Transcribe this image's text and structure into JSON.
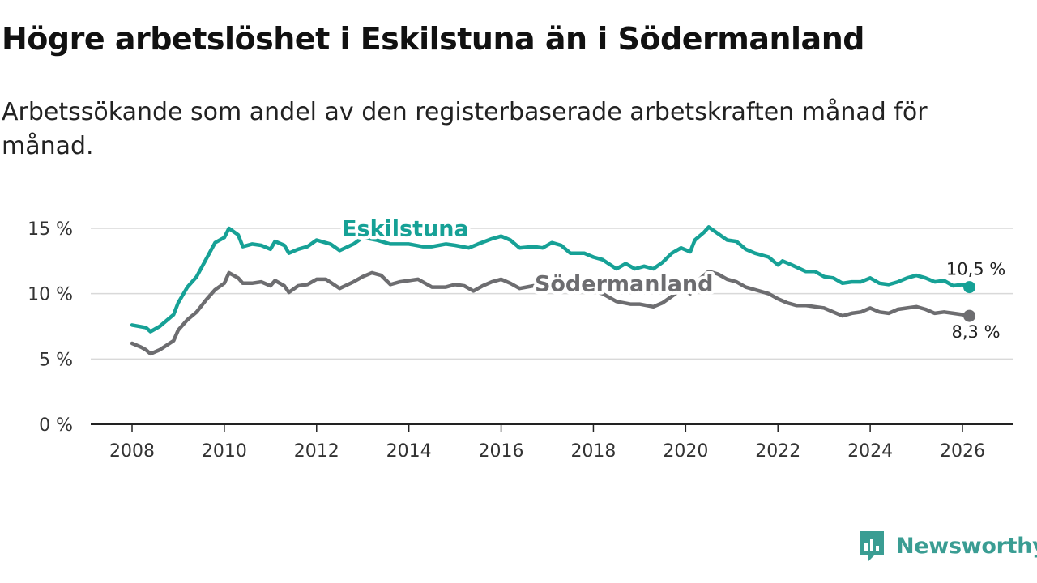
{
  "title": "Högre arbetslöshet i Eskilstuna än i Södermanland",
  "subtitle": "Arbetssökande som andel av den registerbaserade arbetskraften månad för månad.",
  "brand": {
    "name": "Newsworthy",
    "icon": "newsworthy-logo-icon",
    "color": "#3a9d93"
  },
  "colors": {
    "eskilstuna": "#16a196",
    "sodermanland": "#6d6d70",
    "grid": "#d9d9d9",
    "axis": "#222222"
  },
  "chart_data": {
    "type": "line",
    "title": "Högre arbetslöshet i Eskilstuna än i Södermanland",
    "xlabel": "",
    "ylabel": "",
    "xlim": [
      2007.9,
      2027.1
    ],
    "ylim": [
      0,
      15.6
    ],
    "x_ticks": [
      2008,
      2010,
      2012,
      2014,
      2016,
      2018,
      2020,
      2022,
      2024,
      2026
    ],
    "x_tick_labels": [
      "2008",
      "2010",
      "2012",
      "2014",
      "2016",
      "2018",
      "2020",
      "2022",
      "2024",
      "2026"
    ],
    "y_ticks": [
      0,
      5,
      10,
      15
    ],
    "y_tick_labels": [
      "0 %",
      "5 %",
      "10 %",
      "15 %"
    ],
    "grid": true,
    "series": [
      {
        "name": "Eskilstuna",
        "color": "#16a196",
        "end_label": "10,5 %",
        "points": [
          [
            2008.0,
            7.6
          ],
          [
            2008.3,
            7.4
          ],
          [
            2008.4,
            7.1
          ],
          [
            2008.6,
            7.5
          ],
          [
            2008.9,
            8.4
          ],
          [
            2009.0,
            9.3
          ],
          [
            2009.2,
            10.5
          ],
          [
            2009.4,
            11.3
          ],
          [
            2009.6,
            12.6
          ],
          [
            2009.8,
            13.9
          ],
          [
            2010.0,
            14.3
          ],
          [
            2010.1,
            15.0
          ],
          [
            2010.3,
            14.5
          ],
          [
            2010.4,
            13.6
          ],
          [
            2010.6,
            13.8
          ],
          [
            2010.8,
            13.7
          ],
          [
            2011.0,
            13.4
          ],
          [
            2011.1,
            14.0
          ],
          [
            2011.3,
            13.7
          ],
          [
            2011.4,
            13.1
          ],
          [
            2011.6,
            13.4
          ],
          [
            2011.8,
            13.6
          ],
          [
            2012.0,
            14.1
          ],
          [
            2012.3,
            13.8
          ],
          [
            2012.5,
            13.3
          ],
          [
            2012.8,
            13.8
          ],
          [
            2013.0,
            14.3
          ],
          [
            2013.3,
            14.1
          ],
          [
            2013.6,
            13.8
          ],
          [
            2014.0,
            13.8
          ],
          [
            2014.3,
            13.6
          ],
          [
            2014.5,
            13.6
          ],
          [
            2014.8,
            13.8
          ],
          [
            2015.0,
            13.7
          ],
          [
            2015.3,
            13.5
          ],
          [
            2015.5,
            13.8
          ],
          [
            2015.8,
            14.2
          ],
          [
            2016.0,
            14.4
          ],
          [
            2016.2,
            14.1
          ],
          [
            2016.4,
            13.5
          ],
          [
            2016.7,
            13.6
          ],
          [
            2016.9,
            13.5
          ],
          [
            2017.1,
            13.9
          ],
          [
            2017.3,
            13.7
          ],
          [
            2017.5,
            13.1
          ],
          [
            2017.8,
            13.1
          ],
          [
            2018.0,
            12.8
          ],
          [
            2018.2,
            12.6
          ],
          [
            2018.5,
            11.9
          ],
          [
            2018.7,
            12.3
          ],
          [
            2018.9,
            11.9
          ],
          [
            2019.1,
            12.1
          ],
          [
            2019.3,
            11.9
          ],
          [
            2019.5,
            12.4
          ],
          [
            2019.7,
            13.1
          ],
          [
            2019.9,
            13.5
          ],
          [
            2020.1,
            13.2
          ],
          [
            2020.2,
            14.1
          ],
          [
            2020.4,
            14.7
          ],
          [
            2020.5,
            15.1
          ],
          [
            2020.7,
            14.6
          ],
          [
            2020.9,
            14.1
          ],
          [
            2021.1,
            14.0
          ],
          [
            2021.3,
            13.4
          ],
          [
            2021.5,
            13.1
          ],
          [
            2021.8,
            12.8
          ],
          [
            2022.0,
            12.2
          ],
          [
            2022.1,
            12.5
          ],
          [
            2022.3,
            12.2
          ],
          [
            2022.6,
            11.7
          ],
          [
            2022.8,
            11.7
          ],
          [
            2023.0,
            11.3
          ],
          [
            2023.2,
            11.2
          ],
          [
            2023.4,
            10.8
          ],
          [
            2023.6,
            10.9
          ],
          [
            2023.8,
            10.9
          ],
          [
            2024.0,
            11.2
          ],
          [
            2024.2,
            10.8
          ],
          [
            2024.4,
            10.7
          ],
          [
            2024.6,
            10.9
          ],
          [
            2024.8,
            11.2
          ],
          [
            2025.0,
            11.4
          ],
          [
            2025.2,
            11.2
          ],
          [
            2025.4,
            10.9
          ],
          [
            2025.6,
            11.0
          ],
          [
            2025.8,
            10.6
          ],
          [
            2026.0,
            10.7
          ],
          [
            2026.15,
            10.5
          ]
        ]
      },
      {
        "name": "Södermanland",
        "color": "#6d6d70",
        "end_label": "8,3 %",
        "points": [
          [
            2008.0,
            6.2
          ],
          [
            2008.2,
            5.9
          ],
          [
            2008.3,
            5.7
          ],
          [
            2008.4,
            5.4
          ],
          [
            2008.6,
            5.7
          ],
          [
            2008.9,
            6.4
          ],
          [
            2009.0,
            7.2
          ],
          [
            2009.2,
            8.0
          ],
          [
            2009.4,
            8.6
          ],
          [
            2009.6,
            9.5
          ],
          [
            2009.8,
            10.3
          ],
          [
            2010.0,
            10.8
          ],
          [
            2010.1,
            11.6
          ],
          [
            2010.3,
            11.2
          ],
          [
            2010.4,
            10.8
          ],
          [
            2010.6,
            10.8
          ],
          [
            2010.8,
            10.9
          ],
          [
            2011.0,
            10.6
          ],
          [
            2011.1,
            11.0
          ],
          [
            2011.3,
            10.6
          ],
          [
            2011.4,
            10.1
          ],
          [
            2011.6,
            10.6
          ],
          [
            2011.8,
            10.7
          ],
          [
            2012.0,
            11.1
          ],
          [
            2012.2,
            11.1
          ],
          [
            2012.5,
            10.4
          ],
          [
            2012.8,
            10.9
          ],
          [
            2013.0,
            11.3
          ],
          [
            2013.2,
            11.6
          ],
          [
            2013.4,
            11.4
          ],
          [
            2013.6,
            10.7
          ],
          [
            2013.8,
            10.9
          ],
          [
            2014.0,
            11.0
          ],
          [
            2014.2,
            11.1
          ],
          [
            2014.5,
            10.5
          ],
          [
            2014.8,
            10.5
          ],
          [
            2015.0,
            10.7
          ],
          [
            2015.2,
            10.6
          ],
          [
            2015.4,
            10.2
          ],
          [
            2015.6,
            10.6
          ],
          [
            2015.8,
            10.9
          ],
          [
            2016.0,
            11.1
          ],
          [
            2016.2,
            10.8
          ],
          [
            2016.4,
            10.4
          ],
          [
            2016.7,
            10.6
          ],
          [
            2016.9,
            10.7
          ],
          [
            2017.1,
            10.9
          ],
          [
            2017.3,
            10.7
          ],
          [
            2017.5,
            10.3
          ],
          [
            2017.8,
            10.3
          ],
          [
            2018.0,
            10.2
          ],
          [
            2018.2,
            10.0
          ],
          [
            2018.5,
            9.4
          ],
          [
            2018.8,
            9.2
          ],
          [
            2019.0,
            9.2
          ],
          [
            2019.3,
            9.0
          ],
          [
            2019.5,
            9.3
          ],
          [
            2019.7,
            9.8
          ],
          [
            2019.9,
            10.3
          ],
          [
            2020.1,
            10.0
          ],
          [
            2020.3,
            11.1
          ],
          [
            2020.5,
            11.7
          ],
          [
            2020.7,
            11.5
          ],
          [
            2020.9,
            11.1
          ],
          [
            2021.1,
            10.9
          ],
          [
            2021.3,
            10.5
          ],
          [
            2021.5,
            10.3
          ],
          [
            2021.8,
            10.0
          ],
          [
            2022.0,
            9.6
          ],
          [
            2022.2,
            9.3
          ],
          [
            2022.4,
            9.1
          ],
          [
            2022.6,
            9.1
          ],
          [
            2022.8,
            9.0
          ],
          [
            2023.0,
            8.9
          ],
          [
            2023.2,
            8.6
          ],
          [
            2023.4,
            8.3
          ],
          [
            2023.6,
            8.5
          ],
          [
            2023.8,
            8.6
          ],
          [
            2024.0,
            8.9
          ],
          [
            2024.2,
            8.6
          ],
          [
            2024.4,
            8.5
          ],
          [
            2024.6,
            8.8
          ],
          [
            2024.8,
            8.9
          ],
          [
            2025.0,
            9.0
          ],
          [
            2025.2,
            8.8
          ],
          [
            2025.4,
            8.5
          ],
          [
            2025.6,
            8.6
          ],
          [
            2025.8,
            8.5
          ],
          [
            2026.0,
            8.4
          ],
          [
            2026.15,
            8.3
          ]
        ]
      }
    ],
    "annotations": [
      {
        "text": "Eskilstuna",
        "series": "Eskilstuna",
        "x": 2015.3,
        "y": 14.4
      },
      {
        "text": "Södermanland",
        "series": "Södermanland",
        "x": 2020.6,
        "y": 10.2
      }
    ]
  }
}
